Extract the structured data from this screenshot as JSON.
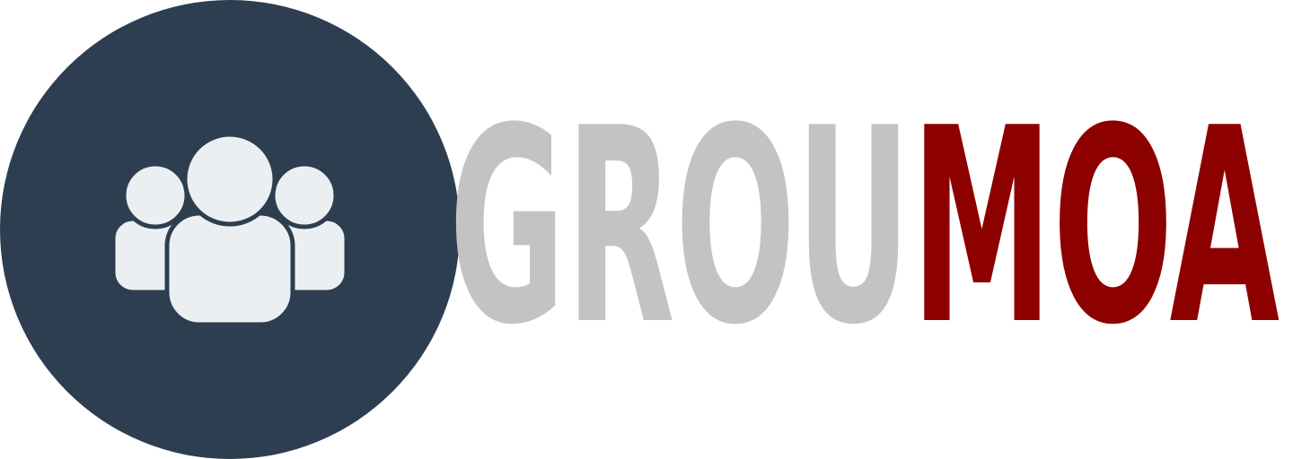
{
  "logo": {
    "word_part1": "GROU",
    "word_part2": "MOA",
    "colors": {
      "circle": "#2e3e51",
      "people": "#ebeff1",
      "word_part1": "#c3c3c3",
      "word_part2": "#8c0000",
      "background": "#ffffff"
    },
    "emblem_icon": "users-group-icon"
  }
}
